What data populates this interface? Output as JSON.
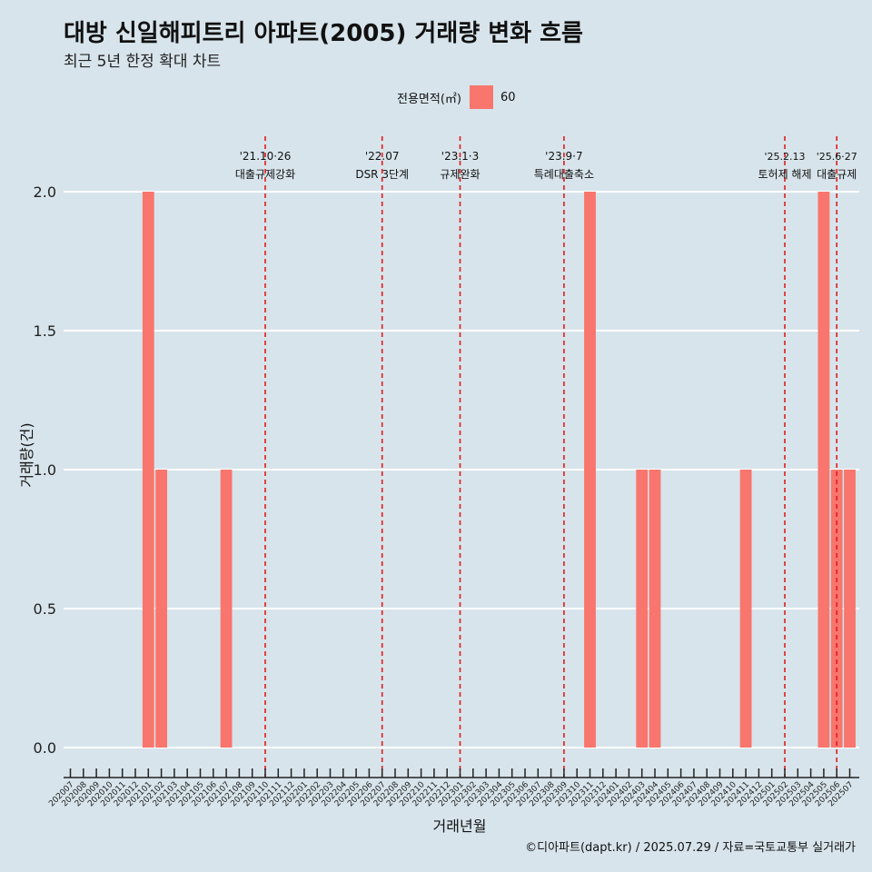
{
  "title": "대방 신일해피트리 아파트(2005) 거래량 변화 흐름",
  "subtitle": "최근 5년 한정 확대 차트",
  "caption": "©디아파트(dapt.kr) / 2025.07.29 / 자료=국토교통부 실거래가",
  "legend": {
    "title": "전용면적(㎡)",
    "items": [
      {
        "label": "60",
        "color": "#f8766d"
      }
    ]
  },
  "colors": {
    "background": "#d7e4eb",
    "bar": "#f8766d",
    "event_line": "#e31a1c",
    "grid": "#ffffff"
  },
  "chart_data": {
    "type": "bar",
    "xlabel": "거래년월",
    "ylabel": "거래량(건)",
    "ylim": [
      0,
      2
    ],
    "yticks": [
      "0.0",
      "0.5",
      "1.0",
      "1.5",
      "2.0"
    ],
    "grid": "horizontal",
    "legend_position": "top",
    "categories": [
      "202007",
      "202008",
      "202009",
      "202010",
      "202011",
      "202012",
      "202101",
      "202102",
      "202103",
      "202104",
      "202105",
      "202106",
      "202107",
      "202108",
      "202109",
      "202110",
      "202111",
      "202112",
      "202201",
      "202202",
      "202203",
      "202204",
      "202205",
      "202206",
      "202207",
      "202208",
      "202209",
      "202210",
      "202211",
      "202212",
      "202301",
      "202302",
      "202303",
      "202304",
      "202305",
      "202306",
      "202307",
      "202308",
      "202309",
      "202310",
      "202311",
      "202312",
      "202401",
      "202402",
      "202403",
      "202404",
      "202405",
      "202406",
      "202407",
      "202408",
      "202409",
      "202410",
      "202411",
      "202412",
      "202501",
      "202502",
      "202503",
      "202504",
      "202505",
      "202506",
      "202507"
    ],
    "series": [
      {
        "name": "60",
        "values": [
          0,
          0,
          0,
          0,
          0,
          0,
          2,
          1,
          0,
          0,
          0,
          0,
          1,
          0,
          0,
          0,
          0,
          0,
          0,
          0,
          0,
          0,
          0,
          0,
          0,
          0,
          0,
          0,
          0,
          0,
          0,
          0,
          0,
          0,
          0,
          0,
          0,
          0,
          0,
          0,
          2,
          0,
          0,
          0,
          1,
          1,
          0,
          0,
          0,
          0,
          0,
          0,
          1,
          0,
          0,
          0,
          0,
          0,
          2,
          1,
          1
        ]
      }
    ],
    "events": [
      {
        "date": "'21.10·26",
        "label": "대출규제강화",
        "month": "202110"
      },
      {
        "date": "'22.07",
        "label": "DSR 3단계",
        "month": "202207"
      },
      {
        "date": "'23.1·3",
        "label": "규제완화",
        "month": "202301"
      },
      {
        "date": "'23.9·7",
        "label": "특례대출축소",
        "month": "202309"
      },
      {
        "date": "'25.2.13",
        "label": "토허제 해제",
        "month": "202502"
      },
      {
        "date": "'25.6·27",
        "label": "대출규제",
        "month": "202506"
      }
    ]
  }
}
